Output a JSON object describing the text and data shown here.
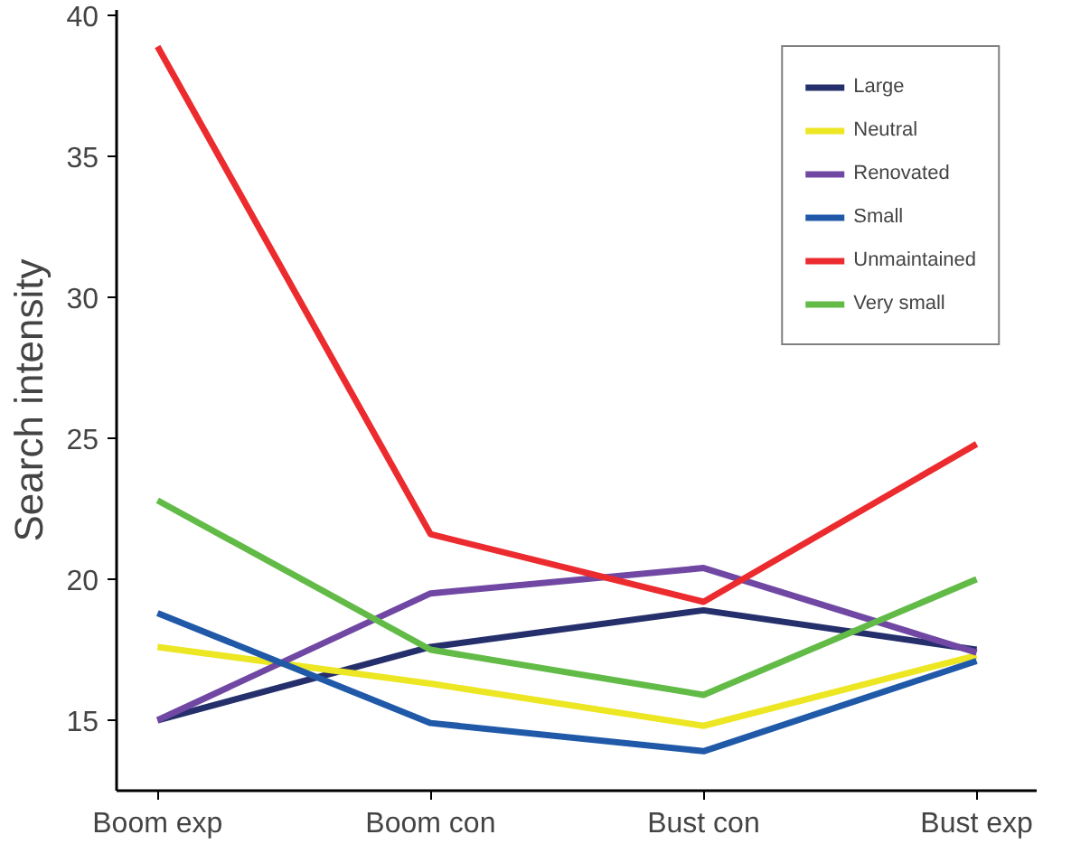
{
  "chart_data": {
    "type": "line",
    "ylabel": "Search intensity",
    "categories": [
      "Boom exp",
      "Boom con",
      "Bust con",
      "Bust exp"
    ],
    "ylim": [
      12.5,
      40.2
    ],
    "yticks": [
      15,
      20,
      25,
      30,
      35,
      40
    ],
    "grid": false,
    "legend": "top right",
    "line_style": "solid",
    "marker": "none",
    "series": [
      {
        "name": "Large",
        "color": "#252f6b",
        "values": [
          15.0,
          17.6,
          18.9,
          17.5
        ]
      },
      {
        "name": "Neutral",
        "color": "#ece623",
        "values": [
          17.6,
          16.3,
          14.8,
          17.3
        ]
      },
      {
        "name": "Renovated",
        "color": "#7048a3",
        "values": [
          15.0,
          19.5,
          20.4,
          17.4
        ]
      },
      {
        "name": "Small",
        "color": "#1f59a8",
        "values": [
          18.8,
          14.9,
          13.9,
          17.1
        ]
      },
      {
        "name": "Unmaintained",
        "color": "#ec2b2e",
        "values": [
          38.9,
          21.6,
          19.2,
          24.8
        ]
      },
      {
        "name": "Very small",
        "color": "#61bb46",
        "values": [
          22.8,
          17.5,
          15.9,
          20.0
        ]
      }
    ]
  }
}
